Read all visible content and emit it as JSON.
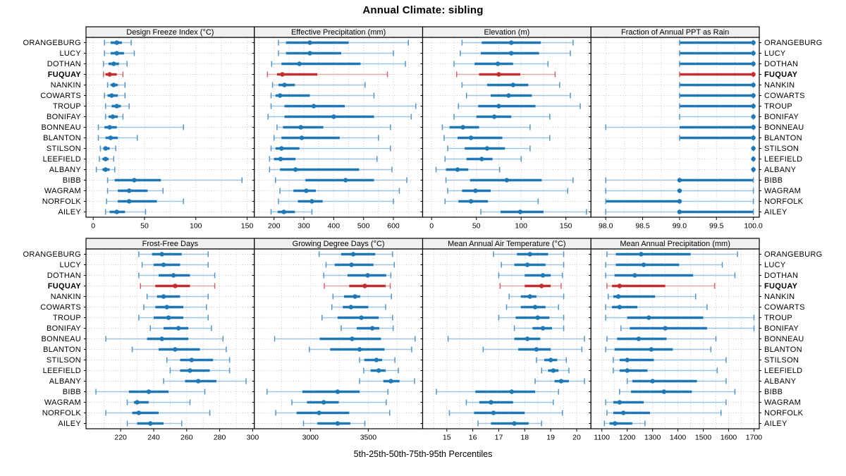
{
  "chart_data": {
    "type": "lattice-dotplot",
    "title": "Annual Climate: sibling",
    "caption": "5th-25th-50th-75th-95th Percentiles",
    "percentiles_shown": [
      "5th",
      "25th",
      "50th",
      "75th",
      "95th"
    ],
    "highlight_series": "FUQUAY",
    "legend_position": "none",
    "grid": "dotted",
    "categories": [
      "ORANGEBURG",
      "LUCY",
      "DOTHAN",
      "FUQUAY",
      "NANKIN",
      "COWARTS",
      "TROUP",
      "BONIFAY",
      "BONNEAU",
      "BLANTON",
      "STILSON",
      "LEEFIELD",
      "ALBANY",
      "BIBB",
      "WAGRAM",
      "NORFOLK",
      "AILEY"
    ],
    "colors": {
      "series": "#1f77b4",
      "series_light": "#9fc6e0",
      "series_cap": "#5694c1",
      "highlight": "#bf2f2f",
      "highlight_light": "#dfa8a8",
      "highlight_cap": "#cc6666",
      "grid": "#c9c9c9",
      "strip_bg": "#f0f0f0",
      "border": "#000000"
    },
    "panels": [
      {
        "title": "Design Freeze Index (°C)",
        "xlim": [
          -7,
          157
        ],
        "grid_step": 25,
        "ticks": [
          0,
          50,
          100,
          150
        ],
        "tick_labels": [
          "0",
          "50",
          "100",
          "150"
        ],
        "values": [
          [
            11,
            17,
            23,
            28,
            37
          ],
          [
            11,
            17,
            23,
            30,
            40
          ],
          [
            10,
            15,
            20,
            25,
            33
          ],
          [
            10,
            12,
            16,
            23,
            29
          ],
          [
            14,
            17,
            20,
            24,
            31
          ],
          [
            11,
            14,
            18,
            24,
            31
          ],
          [
            12,
            18,
            23,
            27,
            35
          ],
          [
            12,
            15,
            19,
            24,
            29
          ],
          [
            5,
            11,
            16,
            23,
            88
          ],
          [
            5,
            12,
            17,
            24,
            43
          ],
          [
            7,
            10,
            12,
            16,
            22
          ],
          [
            6,
            9,
            12,
            15,
            20
          ],
          [
            3,
            9,
            12,
            16,
            21
          ],
          [
            14,
            21,
            40,
            66,
            145
          ],
          [
            14,
            24,
            35,
            53,
            68
          ],
          [
            13,
            24,
            35,
            62,
            88
          ],
          [
            12,
            16,
            23,
            31,
            51
          ]
        ]
      },
      {
        "title": "Effective Precipitation (mm)",
        "xlim": [
          134,
          698
        ],
        "grid_step": 50,
        "ticks": [
          200,
          300,
          400,
          500,
          600
        ],
        "tick_labels": [
          "200",
          "300",
          "400",
          "500",
          "600"
        ],
        "values": [
          [
            215,
            240,
            320,
            450,
            650
          ],
          [
            215,
            240,
            320,
            425,
            600
          ],
          [
            192,
            225,
            285,
            490,
            640
          ],
          [
            178,
            210,
            228,
            345,
            580
          ],
          [
            195,
            215,
            235,
            270,
            505
          ],
          [
            190,
            205,
            220,
            320,
            535
          ],
          [
            190,
            235,
            333,
            437,
            675
          ],
          [
            180,
            235,
            400,
            535,
            660
          ],
          [
            210,
            230,
            290,
            365,
            590
          ],
          [
            200,
            225,
            293,
            420,
            550
          ],
          [
            190,
            205,
            225,
            285,
            590
          ],
          [
            185,
            200,
            222,
            272,
            545
          ],
          [
            185,
            220,
            272,
            485,
            595
          ],
          [
            205,
            305,
            440,
            535,
            645
          ],
          [
            220,
            265,
            308,
            340,
            620
          ],
          [
            215,
            280,
            327,
            363,
            600
          ],
          [
            190,
            212,
            233,
            270,
            327
          ]
        ]
      },
      {
        "title": "Elevation (m)",
        "xlim": [
          -10,
          178
        ],
        "grid_step": 25,
        "ticks": [
          0,
          50,
          100,
          150
        ],
        "tick_labels": [
          "0",
          "50",
          "100",
          "150"
        ],
        "values": [
          [
            34,
            56,
            89,
            122,
            158
          ],
          [
            32,
            55,
            89,
            120,
            155
          ],
          [
            25,
            48,
            74,
            91,
            130
          ],
          [
            28,
            53,
            75,
            99,
            138
          ],
          [
            34,
            62,
            91,
            108,
            143
          ],
          [
            39,
            66,
            86,
            112,
            155
          ],
          [
            30,
            52,
            75,
            116,
            166
          ],
          [
            25,
            50,
            70,
            89,
            132
          ],
          [
            12,
            20,
            35,
            53,
            110
          ],
          [
            14,
            29,
            44,
            79,
            132
          ],
          [
            18,
            37,
            62,
            82,
            110
          ],
          [
            15,
            39,
            56,
            68,
            100
          ],
          [
            5,
            16,
            29,
            41,
            76
          ],
          [
            16,
            43,
            84,
            123,
            158
          ],
          [
            18,
            34,
            49,
            66,
            152
          ],
          [
            15,
            30,
            44,
            63,
            119
          ],
          [
            55,
            77,
            99,
            125,
            173
          ]
        ]
      },
      {
        "title": "Fraction of Annual PPT as Rain",
        "xlim": [
          97.8,
          100.08
        ],
        "grid_step": 0.25,
        "ticks": [
          98.0,
          98.5,
          99.0,
          99.5,
          100.0
        ],
        "tick_labels": [
          "98.0",
          "98.5",
          "99.0",
          "99.5",
          "100.0"
        ],
        "values": [
          [
            99,
            99,
            100,
            100,
            100
          ],
          [
            99,
            99,
            100,
            100,
            100
          ],
          [
            99,
            99,
            100,
            100,
            100
          ],
          [
            99,
            99,
            100,
            100,
            100
          ],
          [
            99,
            99,
            100,
            100,
            100
          ],
          [
            99,
            99,
            100,
            100,
            100
          ],
          [
            99,
            99,
            100,
            100,
            100
          ],
          [
            99,
            100,
            100,
            100,
            100
          ],
          [
            98,
            99,
            100,
            100,
            100
          ],
          [
            99,
            99,
            100,
            100,
            100
          ],
          [
            100,
            100,
            100,
            100,
            100
          ],
          [
            100,
            100,
            100,
            100,
            100
          ],
          [
            100,
            100,
            100,
            100,
            100
          ],
          [
            98,
            99,
            99,
            100,
            100
          ],
          [
            98,
            99,
            99,
            99,
            100
          ],
          [
            98,
            98,
            99,
            99,
            100
          ],
          [
            98,
            99,
            99,
            100,
            100
          ]
        ]
      },
      {
        "title": "Frost-Free Days",
        "xlim": [
          199,
          301
        ],
        "grid_step": 10,
        "ticks": [
          220,
          240,
          260,
          280,
          300
        ],
        "tick_labels": [
          "220",
          "240",
          "260",
          "280",
          "300"
        ],
        "values": [
          [
            231,
            239,
            245,
            257,
            273
          ],
          [
            233,
            240,
            246,
            256,
            273
          ],
          [
            231,
            243,
            252,
            262,
            277
          ],
          [
            232,
            241,
            253,
            262,
            277
          ],
          [
            236,
            242,
            246,
            256,
            273
          ],
          [
            234,
            241,
            248,
            258,
            272
          ],
          [
            231,
            240,
            249,
            258,
            273
          ],
          [
            238,
            246,
            255,
            261,
            275
          ],
          [
            211,
            236,
            245,
            261,
            282
          ],
          [
            227,
            243,
            253,
            268,
            284
          ],
          [
            248,
            256,
            263,
            276,
            286
          ],
          [
            250,
            256,
            262,
            274,
            286
          ],
          [
            246,
            259,
            267,
            278,
            296
          ],
          [
            205,
            225,
            237,
            249,
            271
          ],
          [
            224,
            228,
            230,
            237,
            262
          ],
          [
            211,
            227,
            231,
            243,
            274
          ],
          [
            224,
            230,
            238,
            246,
            257
          ]
        ]
      },
      {
        "title": "Growing Degree Days (°C)",
        "xlim": [
          2515,
          3970
        ],
        "grid_step": 250,
        "ticks": [
          3000,
          3500
        ],
        "tick_labels": [
          "3000",
          "3500"
        ],
        "values": [
          [
            3075,
            3265,
            3370,
            3560,
            3710
          ],
          [
            3135,
            3210,
            3355,
            3545,
            3725
          ],
          [
            3115,
            3320,
            3495,
            3655,
            3695
          ],
          [
            3120,
            3335,
            3470,
            3650,
            3690
          ],
          [
            3195,
            3290,
            3385,
            3430,
            3700
          ],
          [
            3185,
            3280,
            3350,
            3500,
            3650
          ],
          [
            3100,
            3235,
            3440,
            3590,
            3710
          ],
          [
            3265,
            3400,
            3535,
            3595,
            3715
          ],
          [
            2690,
            3080,
            3360,
            3610,
            3905
          ],
          [
            2990,
            3170,
            3425,
            3640,
            3875
          ],
          [
            3425,
            3465,
            3570,
            3620,
            3730
          ],
          [
            3460,
            3520,
            3590,
            3650,
            3760
          ],
          [
            3425,
            3630,
            3695,
            3770,
            3900
          ],
          [
            2625,
            2930,
            3235,
            3425,
            3670
          ],
          [
            2840,
            2970,
            3115,
            3245,
            3655
          ],
          [
            2700,
            2880,
            3075,
            3335,
            3685
          ],
          [
            2940,
            3060,
            3235,
            3345,
            3470
          ]
        ]
      },
      {
        "title": "Mean Annual Air Temperature (°C)",
        "xlim": [
          14.07,
          20.55
        ],
        "grid_step": 0.5,
        "ticks": [
          15,
          16,
          17,
          18,
          19,
          20
        ],
        "tick_labels": [
          "15",
          "16",
          "17",
          "18",
          "19",
          "20"
        ],
        "values": [
          [
            16.8,
            17.7,
            18.2,
            18.9,
            19.5
          ],
          [
            17.1,
            17.6,
            18.1,
            18.8,
            19.5
          ],
          [
            17.0,
            18.0,
            18.7,
            19.0,
            19.45
          ],
          [
            17.05,
            18.0,
            18.65,
            19.0,
            19.4
          ],
          [
            17.4,
            17.85,
            18.2,
            18.45,
            19.5
          ],
          [
            17.3,
            17.85,
            18.4,
            18.8,
            19.3
          ],
          [
            17.0,
            17.65,
            18.5,
            18.95,
            19.5
          ],
          [
            17.6,
            18.3,
            18.7,
            19.05,
            19.5
          ],
          [
            15.05,
            17.6,
            18.1,
            18.6,
            20.3
          ],
          [
            16.4,
            17.75,
            18.45,
            19.0,
            20.2
          ],
          [
            18.45,
            18.75,
            19.0,
            19.25,
            19.6
          ],
          [
            18.65,
            18.9,
            19.1,
            19.3,
            19.7
          ],
          [
            18.4,
            19.15,
            19.4,
            19.7,
            20.3
          ],
          [
            14.6,
            16.1,
            17.5,
            18.4,
            19.3
          ],
          [
            15.75,
            16.25,
            16.7,
            17.55,
            19.1
          ],
          [
            15.1,
            16.05,
            16.8,
            18.0,
            19.45
          ],
          [
            16.2,
            16.7,
            17.6,
            18.15,
            18.65
          ]
        ]
      },
      {
        "title": "Mean Annual Precipitation (mm)",
        "xlim": [
          1057,
          1721
        ],
        "grid_step": 50,
        "ticks": [
          1100,
          1200,
          1300,
          1400,
          1500,
          1600,
          1700
        ],
        "tick_labels": [
          "1100",
          "1200",
          "1300",
          "1400",
          "1500",
          "1600",
          "1700"
        ],
        "values": [
          [
            1120,
            1155,
            1255,
            1450,
            1635
          ],
          [
            1115,
            1155,
            1265,
            1405,
            1575
          ],
          [
            1115,
            1150,
            1230,
            1460,
            1625
          ],
          [
            1120,
            1140,
            1170,
            1350,
            1545
          ],
          [
            1125,
            1145,
            1165,
            1310,
            1470
          ],
          [
            1115,
            1140,
            1170,
            1240,
            1515
          ],
          [
            1115,
            1200,
            1285,
            1500,
            1700
          ],
          [
            1175,
            1210,
            1350,
            1515,
            1700
          ],
          [
            1120,
            1160,
            1245,
            1355,
            1550
          ],
          [
            1115,
            1150,
            1295,
            1380,
            1530
          ],
          [
            1145,
            1170,
            1200,
            1305,
            1590
          ],
          [
            1145,
            1170,
            1200,
            1280,
            1555
          ],
          [
            1200,
            1220,
            1300,
            1475,
            1590
          ],
          [
            1170,
            1215,
            1345,
            1455,
            1625
          ],
          [
            1115,
            1145,
            1170,
            1265,
            1590
          ],
          [
            1120,
            1145,
            1185,
            1290,
            1570
          ],
          [
            1110,
            1130,
            1152,
            1220,
            1270
          ]
        ]
      }
    ]
  }
}
